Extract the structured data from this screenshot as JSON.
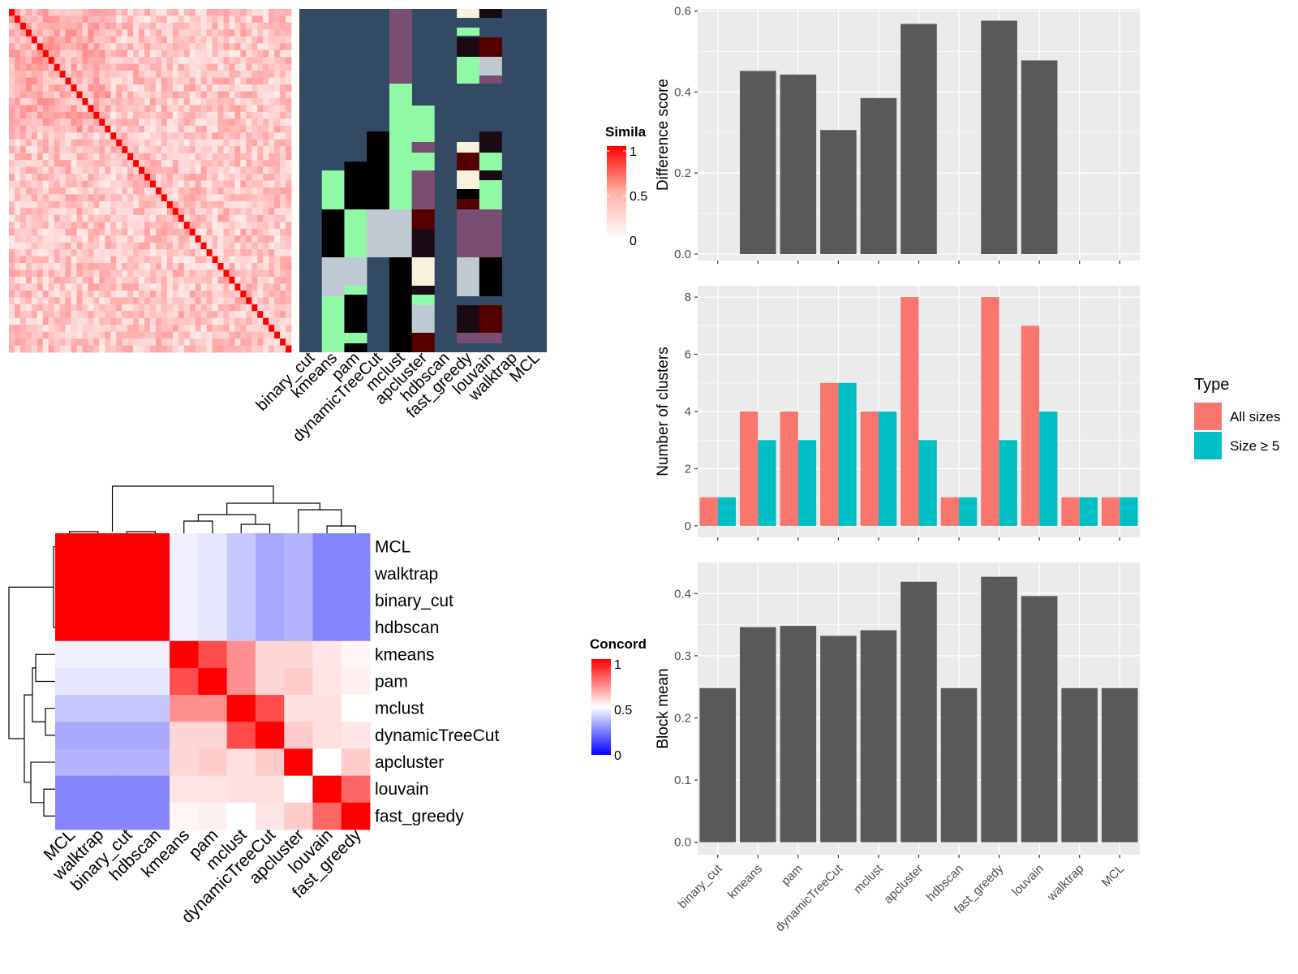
{
  "colors": {
    "panel_bg": "#EBEBEB",
    "grid": "#FFFFFF",
    "bar": "#595959",
    "all_sizes": "#F8766D",
    "size_ge5": "#00BFC4",
    "assign_bg": "#324A64",
    "sim_high": "#FF0000",
    "conc_low": "#0000FF"
  },
  "chart_data": [
    {
      "id": "similarity-heatmap",
      "type": "heatmap",
      "legend_title": "Simila",
      "legend_ticks": [
        "1",
        "0.5",
        "0"
      ],
      "size": 50
    },
    {
      "id": "cluster-assignment-heatmap",
      "type": "heatmap",
      "methods": [
        "binary_cut",
        "kmeans",
        "pam",
        "dynamicTreeCut",
        "mclust",
        "apcluster",
        "hdbscan",
        "fast_greedy",
        "louvain",
        "walktrap",
        "MCL"
      ]
    },
    {
      "id": "concordance-heatmap",
      "type": "heatmap",
      "legend_title": "Concord",
      "legend_ticks": [
        "1",
        "0.5",
        "0"
      ],
      "row_labels": [
        "MCL",
        "walktrap",
        "binary_cut",
        "hdbscan",
        "kmeans",
        "pam",
        "mclust",
        "dynamicTreeCut",
        "apcluster",
        "louvain",
        "fast_greedy"
      ],
      "col_labels": [
        "MCL",
        "walktrap",
        "binary_cut",
        "hdbscan",
        "kmeans",
        "pam",
        "mclust",
        "dynamicTreeCut",
        "apcluster",
        "louvain",
        "fast_greedy"
      ]
    },
    {
      "id": "difference-score",
      "type": "bar",
      "categories": [
        "binary_cut",
        "kmeans",
        "pam",
        "dynamicTreeCut",
        "mclust",
        "apcluster",
        "hdbscan",
        "fast_greedy",
        "louvain",
        "walktrap",
        "MCL"
      ],
      "values": [
        0,
        0.452,
        0.443,
        0.306,
        0.385,
        0.568,
        0,
        0.576,
        0.478,
        0,
        0
      ],
      "ylabel": "Difference score",
      "ylim": [
        -0.016,
        0.605
      ],
      "yticks": [
        0.0,
        0.2,
        0.4,
        0.6
      ],
      "ytick_labels": [
        "0.0",
        "0.2",
        "0.4",
        "0.6"
      ],
      "grid": true
    },
    {
      "id": "number-of-clusters",
      "type": "bar",
      "categories": [
        "binary_cut",
        "kmeans",
        "pam",
        "dynamicTreeCut",
        "mclust",
        "apcluster",
        "hdbscan",
        "fast_greedy",
        "louvain",
        "walktrap",
        "MCL"
      ],
      "series": [
        {
          "name": "All sizes",
          "values": [
            1,
            4,
            4,
            5,
            4,
            8,
            1,
            8,
            7,
            1,
            1
          ]
        },
        {
          "name": "Size ≥ 5",
          "values": [
            1,
            3,
            3,
            5,
            4,
            3,
            1,
            3,
            4,
            1,
            1
          ]
        }
      ],
      "ylabel": "Number of clusters",
      "ylim": [
        -0.4,
        8.4
      ],
      "yticks": [
        0,
        2,
        4,
        6,
        8
      ],
      "ytick_labels": [
        "0",
        "2",
        "4",
        "6",
        "8"
      ],
      "legend_title": "Type",
      "legend_position": "right",
      "grid": true
    },
    {
      "id": "block-mean",
      "type": "bar",
      "categories": [
        "binary_cut",
        "kmeans",
        "pam",
        "dynamicTreeCut",
        "mclust",
        "apcluster",
        "hdbscan",
        "fast_greedy",
        "louvain",
        "walktrap",
        "MCL"
      ],
      "values": [
        0.248,
        0.346,
        0.348,
        0.332,
        0.341,
        0.419,
        0.248,
        0.427,
        0.396,
        0.248,
        0.248
      ],
      "ylabel": "Block mean",
      "ylim": [
        -0.02,
        0.45
      ],
      "yticks": [
        0.0,
        0.1,
        0.2,
        0.3,
        0.4
      ],
      "ytick_labels": [
        "0.0",
        "0.1",
        "0.2",
        "0.3",
        "0.4"
      ],
      "grid": true
    }
  ]
}
